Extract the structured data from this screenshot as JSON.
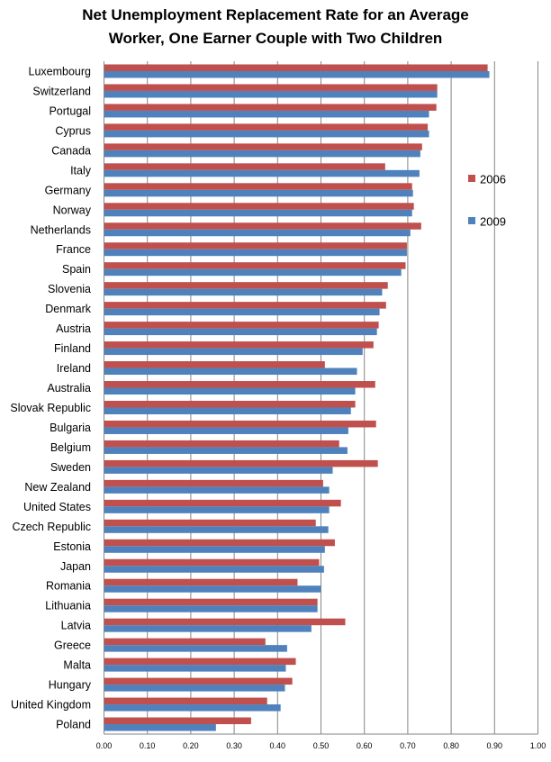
{
  "chart_data": {
    "type": "bar",
    "orientation": "horizontal",
    "title_lines": [
      "Net Unemployment  Replacement Rate for an Average",
      "Worker, One Earner Couple with Two Children"
    ],
    "xlabel": "",
    "ylabel": "",
    "xlim": [
      0,
      1
    ],
    "x_ticks": [
      "0.00",
      "0.10",
      "0.20",
      "0.30",
      "0.40",
      "0.50",
      "0.60",
      "0.70",
      "0.80",
      "0.90",
      "1.00"
    ],
    "grid": true,
    "legend_position": "right",
    "categories": [
      "Luxembourg",
      "Switzerland",
      "Portugal",
      "Cyprus",
      "Canada",
      "Italy",
      "Germany",
      "Norway",
      "Netherlands",
      "France",
      "Spain",
      "Slovenia",
      "Denmark",
      "Austria",
      "Finland",
      "Ireland",
      "Australia",
      "Slovak Republic",
      "Bulgaria",
      "Belgium",
      "Sweden",
      "New Zealand",
      "United States",
      "Czech Republic",
      "Estonia",
      "Japan",
      "Romania",
      "Lithuania",
      "Latvia",
      "Greece",
      "Malta",
      "Hungary",
      "United Kingdom",
      "Poland"
    ],
    "series": [
      {
        "name": "2006",
        "color": "#c0504d",
        "values": [
          0.884,
          0.768,
          0.766,
          0.746,
          0.733,
          0.648,
          0.71,
          0.714,
          0.731,
          0.698,
          0.695,
          0.654,
          0.65,
          0.633,
          0.621,
          0.509,
          0.625,
          0.579,
          0.627,
          0.542,
          0.631,
          0.505,
          0.546,
          0.488,
          0.532,
          0.496,
          0.446,
          0.492,
          0.556,
          0.372,
          0.442,
          0.434,
          0.376,
          0.339
        ]
      },
      {
        "name": "2009",
        "color": "#4f81bd",
        "values": [
          0.888,
          0.768,
          0.749,
          0.749,
          0.729,
          0.727,
          0.712,
          0.71,
          0.706,
          0.698,
          0.685,
          0.641,
          0.635,
          0.629,
          0.596,
          0.583,
          0.579,
          0.569,
          0.563,
          0.561,
          0.527,
          0.519,
          0.519,
          0.517,
          0.509,
          0.507,
          0.5,
          0.492,
          0.478,
          0.422,
          0.419,
          0.417,
          0.407,
          0.258
        ]
      }
    ]
  }
}
